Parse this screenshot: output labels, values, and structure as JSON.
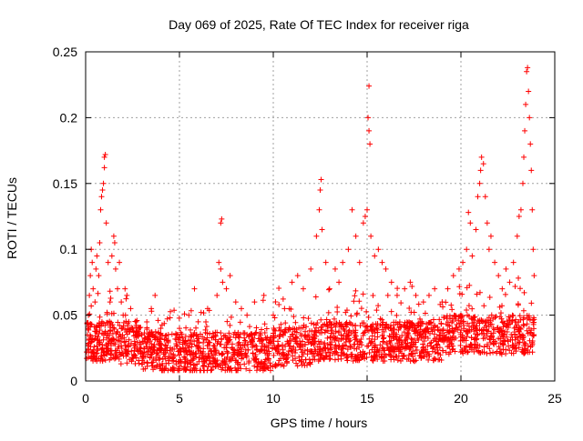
{
  "chart_data": {
    "type": "scatter",
    "title": "Day 069 of 2025, Rate Of TEC Index for receiver riga",
    "xlabel": "GPS time / hours",
    "ylabel": "ROTI / TECUs",
    "xlim": [
      0,
      25
    ],
    "ylim": [
      0,
      0.25
    ],
    "xticks": [
      0,
      5,
      10,
      15,
      20,
      25
    ],
    "xtick_labels": [
      "0",
      "5",
      "10",
      "15",
      "20",
      "25"
    ],
    "yticks": [
      0,
      0.05,
      0.1,
      0.15,
      0.2,
      0.25
    ],
    "ytick_labels": [
      "0",
      "0.05",
      "0.1",
      "0.15",
      "0.2",
      "0.25"
    ],
    "grid": true,
    "legend": "none",
    "marker": "plus",
    "color": "#ff0000",
    "series": [
      {
        "points": [
          [
            0.05,
            0.022
          ],
          [
            0.1,
            0.035
          ],
          [
            0.15,
            0.05
          ],
          [
            0.2,
            0.065
          ],
          [
            0.25,
            0.08
          ],
          [
            0.3,
            0.1
          ],
          [
            0.35,
            0.09
          ],
          [
            0.4,
            0.07
          ],
          [
            0.5,
            0.06
          ],
          [
            0.55,
            0.085
          ],
          [
            0.6,
            0.095
          ],
          [
            0.7,
            0.08
          ],
          [
            0.75,
            0.105
          ],
          [
            0.8,
            0.13
          ],
          [
            0.85,
            0.14
          ],
          [
            0.9,
            0.145
          ],
          [
            0.95,
            0.15
          ],
          [
            1.0,
            0.17
          ],
          [
            1.05,
            0.172
          ],
          [
            1.0,
            0.162
          ],
          [
            1.1,
            0.12
          ],
          [
            1.2,
            0.09
          ],
          [
            1.3,
            0.06
          ],
          [
            1.4,
            0.095
          ],
          [
            1.5,
            0.11
          ],
          [
            1.55,
            0.105
          ],
          [
            1.6,
            0.085
          ],
          [
            1.7,
            0.07
          ],
          [
            1.8,
            0.09
          ],
          [
            1.9,
            0.06
          ],
          [
            2.0,
            0.05
          ],
          [
            2.1,
            0.07
          ],
          [
            2.2,
            0.065
          ],
          [
            2.3,
            0.045
          ],
          [
            2.4,
            0.055
          ],
          [
            2.5,
            0.04
          ],
          [
            2.7,
            0.045
          ],
          [
            3.0,
            0.035
          ],
          [
            3.5,
            0.055
          ],
          [
            3.7,
            0.065
          ],
          [
            4.0,
            0.04
          ],
          [
            4.5,
            0.048
          ],
          [
            5.0,
            0.04
          ],
          [
            5.5,
            0.05
          ],
          [
            5.8,
            0.07
          ],
          [
            6.0,
            0.045
          ],
          [
            6.5,
            0.055
          ],
          [
            7.0,
            0.065
          ],
          [
            7.1,
            0.09
          ],
          [
            7.2,
            0.12
          ],
          [
            7.25,
            0.123
          ],
          [
            7.2,
            0.085
          ],
          [
            7.3,
            0.075
          ],
          [
            7.5,
            0.07
          ],
          [
            7.7,
            0.08
          ],
          [
            8.0,
            0.06
          ],
          [
            8.3,
            0.055
          ],
          [
            8.6,
            0.05
          ],
          [
            9.0,
            0.06
          ],
          [
            9.5,
            0.065
          ],
          [
            10.0,
            0.05
          ],
          [
            10.3,
            0.058
          ],
          [
            10.6,
            0.055
          ],
          [
            11.0,
            0.075
          ],
          [
            11.3,
            0.08
          ],
          [
            11.6,
            0.07
          ],
          [
            12.0,
            0.085
          ],
          [
            12.3,
            0.11
          ],
          [
            12.45,
            0.13
          ],
          [
            12.5,
            0.145
          ],
          [
            12.55,
            0.153
          ],
          [
            12.6,
            0.115
          ],
          [
            12.8,
            0.09
          ],
          [
            13.0,
            0.07
          ],
          [
            13.3,
            0.085
          ],
          [
            13.5,
            0.075
          ],
          [
            13.7,
            0.09
          ],
          [
            14.0,
            0.1
          ],
          [
            14.2,
            0.13
          ],
          [
            14.4,
            0.11
          ],
          [
            14.6,
            0.09
          ],
          [
            14.8,
            0.12
          ],
          [
            14.9,
            0.125
          ],
          [
            15.0,
            0.13
          ],
          [
            15.05,
            0.2
          ],
          [
            15.1,
            0.19
          ],
          [
            15.15,
            0.18
          ],
          [
            15.1,
            0.224
          ],
          [
            15.2,
            0.11
          ],
          [
            15.4,
            0.095
          ],
          [
            15.6,
            0.1
          ],
          [
            15.8,
            0.09
          ],
          [
            16.0,
            0.085
          ],
          [
            16.3,
            0.075
          ],
          [
            16.6,
            0.065
          ],
          [
            17.0,
            0.07
          ],
          [
            17.3,
            0.075
          ],
          [
            17.6,
            0.065
          ],
          [
            18.0,
            0.06
          ],
          [
            18.3,
            0.065
          ],
          [
            18.6,
            0.07
          ],
          [
            19.0,
            0.06
          ],
          [
            19.3,
            0.07
          ],
          [
            19.6,
            0.08
          ],
          [
            19.9,
            0.085
          ],
          [
            20.1,
            0.09
          ],
          [
            20.3,
            0.1
          ],
          [
            20.4,
            0.128
          ],
          [
            20.5,
            0.12
          ],
          [
            20.6,
            0.095
          ],
          [
            20.8,
            0.115
          ],
          [
            20.9,
            0.14
          ],
          [
            21.0,
            0.15
          ],
          [
            21.05,
            0.16
          ],
          [
            21.1,
            0.17
          ],
          [
            21.2,
            0.165
          ],
          [
            21.3,
            0.14
          ],
          [
            21.4,
            0.12
          ],
          [
            21.5,
            0.1
          ],
          [
            21.6,
            0.11
          ],
          [
            21.8,
            0.09
          ],
          [
            22.0,
            0.08
          ],
          [
            22.2,
            0.07
          ],
          [
            22.4,
            0.085
          ],
          [
            22.6,
            0.075
          ],
          [
            22.8,
            0.09
          ],
          [
            23.0,
            0.11
          ],
          [
            23.1,
            0.125
          ],
          [
            23.2,
            0.13
          ],
          [
            23.3,
            0.15
          ],
          [
            23.35,
            0.17
          ],
          [
            23.4,
            0.19
          ],
          [
            23.45,
            0.21
          ],
          [
            23.5,
            0.235
          ],
          [
            23.55,
            0.238
          ],
          [
            23.6,
            0.22
          ],
          [
            23.65,
            0.2
          ],
          [
            23.7,
            0.18
          ],
          [
            23.75,
            0.16
          ],
          [
            23.8,
            0.13
          ],
          [
            23.85,
            0.1
          ],
          [
            23.9,
            0.08
          ]
        ]
      }
    ]
  }
}
